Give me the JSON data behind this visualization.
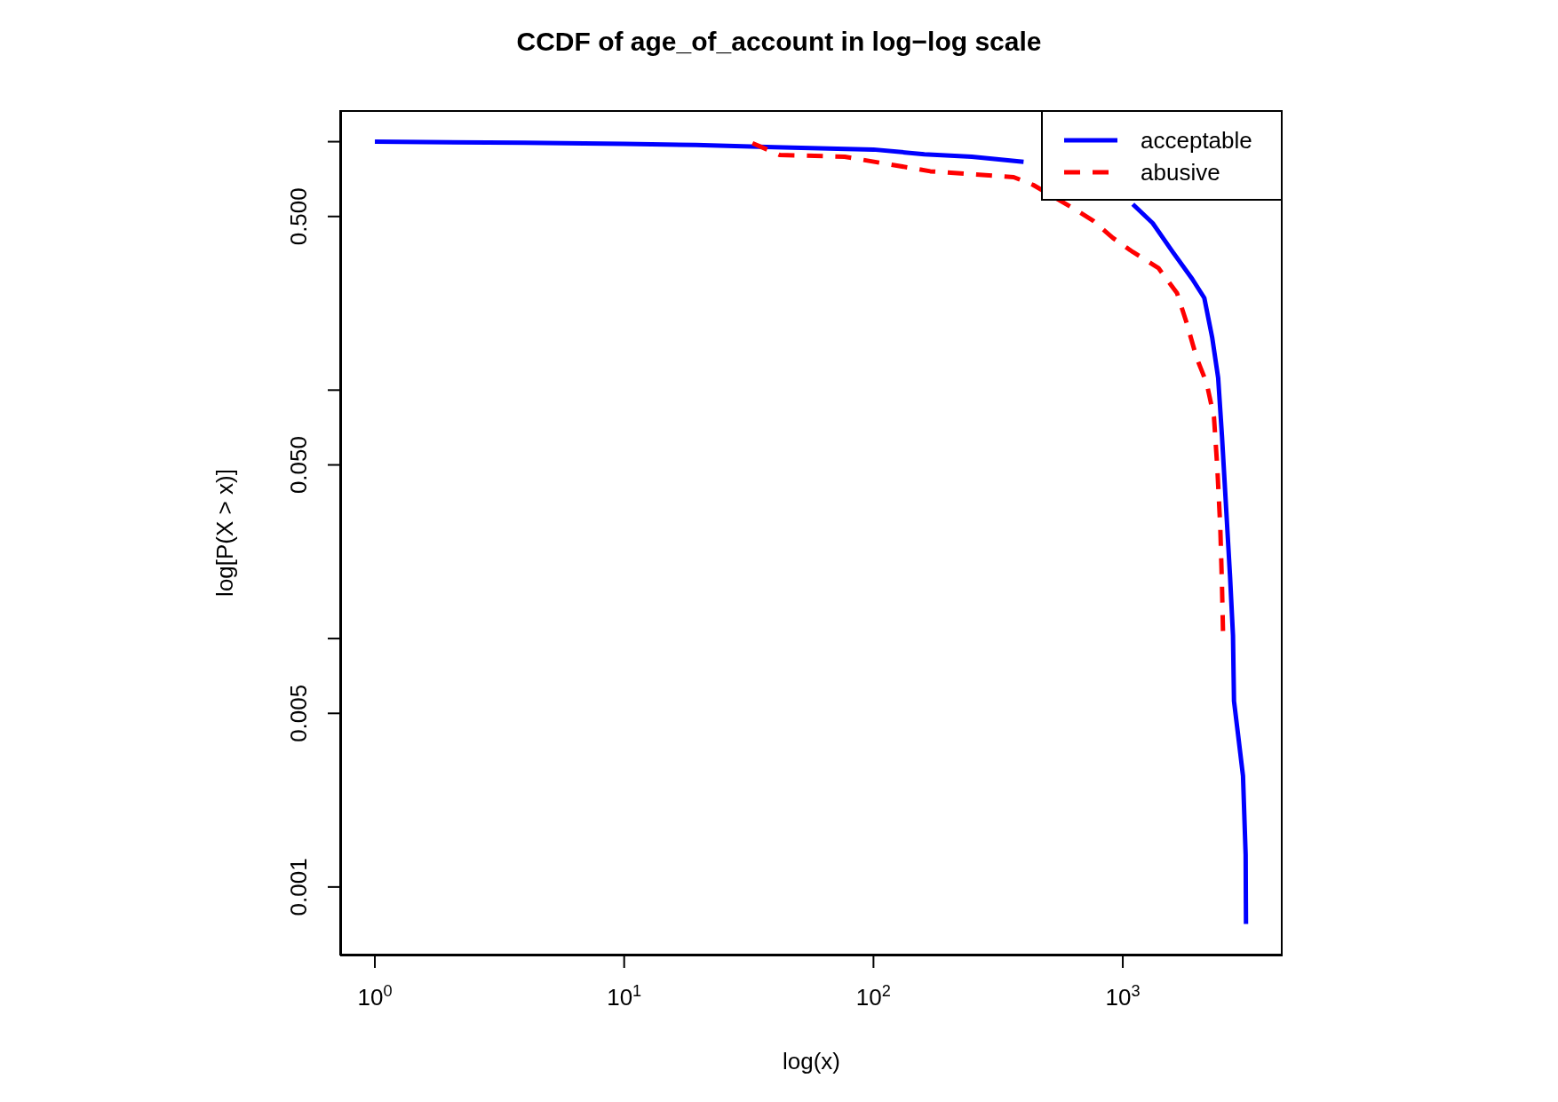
{
  "chart_data": {
    "type": "line",
    "title": "CCDF of age_of_account in log−log scale",
    "xlabel": "log(x)",
    "ylabel": "log[P(X > x)]",
    "log": "xy",
    "xlim": [
      0.726,
      4377
    ],
    "ylim": [
      0.00053,
      1.34
    ],
    "xticks": [
      {
        "value": 1,
        "label": "10$^{0}$"
      },
      {
        "value": 10,
        "label": "10$^{1}$"
      },
      {
        "value": 100,
        "label": "10$^{2}$"
      },
      {
        "value": 1000,
        "label": "10$^{3}$"
      }
    ],
    "yticks": [
      0.001,
      {
        "value": 0.005,
        "label": "0.005"
      },
      {
        "value": 0.01,
        "label": null
      },
      {
        "value": 0.05,
        "label": "0.050"
      },
      {
        "value": 0.1,
        "label": null
      },
      {
        "value": 0.5,
        "label": "0.500"
      },
      {
        "value": 1,
        "label": null
      }
    ],
    "legend": "top right",
    "marker": "none",
    "series": [
      {
        "name": "acceptable",
        "color": "#0000ff",
        "line_style": "solid",
        "x": [
          1,
          3.96,
          10,
          19.4,
          40,
          100,
          160,
          248,
          400,
          632,
          832,
          1097,
          1318,
          1585,
          1900,
          2123,
          2283,
          2413,
          2500,
          2595,
          2693,
          2767,
          2793,
          2900,
          3035,
          3110,
          3120
        ],
        "values": [
          1.0,
          0.99,
          0.98,
          0.97,
          0.95,
          0.93,
          0.89,
          0.87,
          0.83,
          null,
          null,
          0.56,
          0.47,
          0.36,
          0.28,
          0.235,
          0.163,
          0.112,
          0.065,
          0.034,
          0.0178,
          0.0103,
          0.0056,
          0.0041,
          0.0028,
          0.00135,
          0.00071
        ]
      },
      {
        "name": "abusive",
        "color": "#ff0000",
        "line_style": "dashed",
        "x": [
          32.7,
          42,
          76.6,
          169,
          365,
          437,
          632,
          761,
          912,
          1097,
          1390,
          1650,
          1802,
          1977,
          2168,
          2321,
          2393,
          2461,
          2500,
          2523
        ],
        "values": [
          0.986,
          0.885,
          0.87,
          0.76,
          0.72,
          0.67,
          0.54,
          0.48,
          0.41,
          0.36,
          0.31,
          0.246,
          0.187,
          0.135,
          0.107,
          0.078,
          0.049,
          0.028,
          0.0163,
          0.0107
        ]
      }
    ]
  }
}
